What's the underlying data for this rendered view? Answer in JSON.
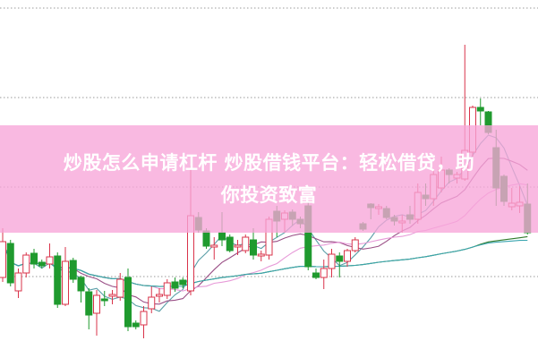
{
  "banner": {
    "title_line1": "炒股怎么申请杠杆 炒股借钱平台：轻松借贷，助",
    "title_line2": "你投资致富",
    "background": "#f7a5d8"
  },
  "chart_data": {
    "type": "candlestick",
    "grid": "horizontal dotted",
    "colors": {
      "up": "#d9334a",
      "down": "#1f9a2e",
      "ma5": "#5b9fa8",
      "ma10": "#9a4f86",
      "ma20": "#e79ad8",
      "ma60": "#2f7a2a",
      "ma120": "#3aa5b0"
    },
    "moving_averages": [
      5,
      10,
      20,
      60,
      120
    ],
    "ohlc": [
      [
        90,
        145,
        85,
        130
      ],
      [
        128,
        132,
        80,
        84
      ],
      [
        75,
        100,
        67,
        95
      ],
      [
        95,
        118,
        90,
        115
      ],
      [
        117,
        122,
        100,
        105
      ],
      [
        107,
        110,
        100,
        103
      ],
      [
        105,
        128,
        100,
        113
      ],
      [
        114,
        118,
        56,
        60
      ],
      [
        60,
        124,
        58,
        108
      ],
      [
        109,
        112,
        84,
        88
      ],
      [
        90,
        92,
        62,
        75
      ],
      [
        74,
        78,
        32,
        48
      ],
      [
        50,
        76,
        25,
        70
      ],
      [
        66,
        75,
        58,
        64
      ],
      [
        69,
        76,
        60,
        71
      ],
      [
        68,
        95,
        64,
        88
      ],
      [
        90,
        100,
        30,
        35
      ],
      [
        39,
        42,
        32,
        35
      ],
      [
        37,
        58,
        22,
        52
      ],
      [
        55,
        80,
        50,
        68
      ],
      [
        69,
        78,
        62,
        71
      ],
      [
        70,
        88,
        66,
        84
      ],
      [
        85,
        90,
        74,
        78
      ],
      [
        87,
        90,
        78,
        82
      ],
      [
        75,
        215,
        70,
        159
      ],
      [
        157,
        163,
        140,
        143
      ],
      [
        142,
        145,
        122,
        125
      ],
      [
        124,
        135,
        110,
        126
      ],
      [
        140,
        163,
        125,
        132
      ],
      [
        135,
        138,
        118,
        120
      ],
      [
        124,
        132,
        115,
        126
      ],
      [
        120,
        138,
        117,
        135
      ],
      [
        132,
        145,
        110,
        115
      ],
      [
        114,
        120,
        108,
        116
      ],
      [
        115,
        158,
        110,
        155
      ],
      [
        164,
        170,
        135,
        153
      ],
      [
        155,
        165,
        140,
        162
      ],
      [
        163,
        166,
        148,
        155
      ],
      [
        155,
        158,
        145,
        150
      ],
      [
        170,
        175,
        98,
        102
      ],
      [
        95,
        100,
        88,
        90
      ],
      [
        90,
        110,
        77,
        100
      ],
      [
        100,
        122,
        90,
        116
      ],
      [
        114,
        118,
        90,
        108
      ],
      [
        108,
        122,
        102,
        120
      ],
      [
        120,
        135,
        118,
        132
      ],
      [
        150,
        152,
        142,
        144
      ],
      [
        172,
        173,
        155,
        168
      ],
      [
        167,
        172,
        160,
        169
      ],
      [
        167,
        170,
        155,
        157
      ],
      [
        157,
        160,
        148,
        153
      ],
      [
        151,
        160,
        140,
        153
      ],
      [
        160,
        170,
        150,
        155
      ],
      [
        155,
        195,
        150,
        185
      ],
      [
        182,
        195,
        170,
        178
      ],
      [
        178,
        210,
        170,
        205
      ],
      [
        190,
        225,
        185,
        210
      ],
      [
        210,
        212,
        195,
        205
      ],
      [
        201,
        208,
        195,
        205
      ],
      [
        200,
        350,
        198,
        232
      ],
      [
        230,
        282,
        225,
        280
      ],
      [
        280,
        290,
        260,
        276
      ],
      [
        275,
        276,
        250,
        252
      ],
      [
        235,
        255,
        170,
        190
      ],
      [
        203,
        205,
        170,
        175
      ],
      [
        169,
        190,
        165,
        173
      ],
      [
        170,
        192,
        162,
        174
      ],
      [
        172,
        195,
        138,
        140
      ]
    ]
  }
}
